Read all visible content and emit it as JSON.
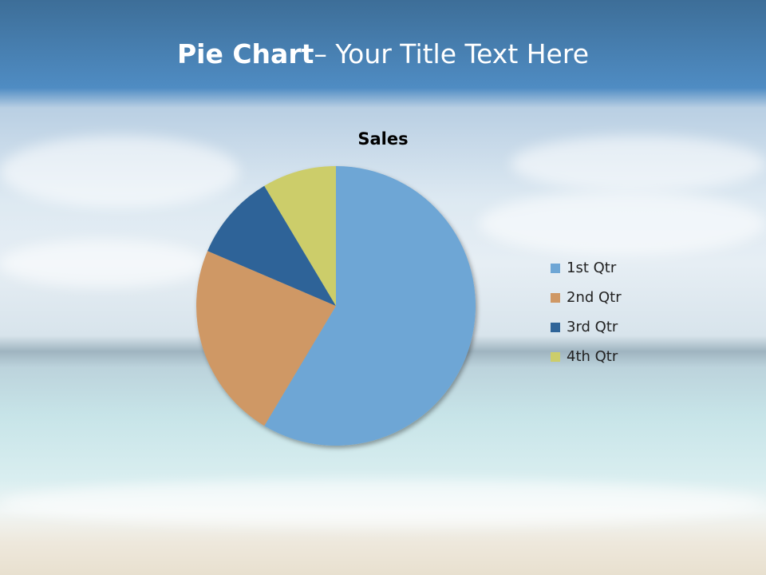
{
  "slide": {
    "title_bold": "Pie Chart",
    "title_rest": "– Your Title Text Here"
  },
  "chart_data": {
    "type": "pie",
    "title": "Sales",
    "categories": [
      "1st Qtr",
      "2nd Qtr",
      "3rd Qtr",
      "4th Qtr"
    ],
    "values": [
      8.2,
      3.2,
      1.4,
      1.2
    ],
    "colors": [
      "#6ea6d5",
      "#cf9865",
      "#2f6498",
      "#cccd6a"
    ],
    "legend_position": "right",
    "start_angle_deg": 0,
    "direction": "clockwise"
  }
}
